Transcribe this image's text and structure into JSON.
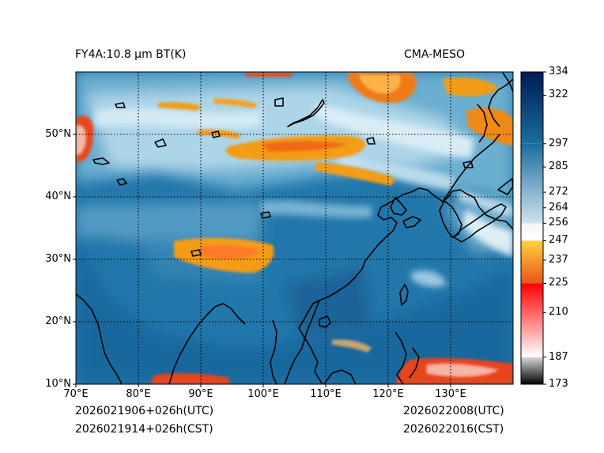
{
  "header": {
    "title_left": "FY4A:10.8 µm BT(K)",
    "title_right": "CMA-MESO"
  },
  "footer": {
    "init_utc": "2026021906+026h(UTC)",
    "init_cst": "2026021914+026h(CST)",
    "valid_utc": "2026022008(UTC)",
    "valid_cst": "2026022016(CST)"
  },
  "map": {
    "lon_range": [
      70,
      140
    ],
    "lat_range": [
      10,
      60
    ],
    "lon_ticks": [
      {
        "value": 70,
        "label": "70°E"
      },
      {
        "value": 80,
        "label": "80°E"
      },
      {
        "value": 90,
        "label": "90°E"
      },
      {
        "value": 100,
        "label": "100°E"
      },
      {
        "value": 110,
        "label": "110°E"
      },
      {
        "value": 120,
        "label": "120°E"
      },
      {
        "value": 130,
        "label": "130°E"
      }
    ],
    "lat_ticks": [
      {
        "value": 10,
        "label": "10°N"
      },
      {
        "value": 20,
        "label": "20°N"
      },
      {
        "value": 30,
        "label": "30°N"
      },
      {
        "value": 40,
        "label": "40°N"
      },
      {
        "value": 50,
        "label": "50°N"
      }
    ],
    "colors": {
      "ocean": "#1d6d9f",
      "land": "#2a7fae",
      "cloud_mid": "#8ec3dc",
      "cloud_high": "#f39c12",
      "cloud_very_high": "#e53b1a",
      "coastline": "#000000",
      "grid": "#000000"
    }
  },
  "colorbar": {
    "min": 173,
    "max": 334,
    "tick_values": [
      334,
      322,
      297,
      285,
      272,
      264,
      256,
      247,
      237,
      225,
      210,
      187,
      173
    ],
    "segments": [
      {
        "from": 173,
        "to": 187,
        "color_top": "#d8d8d8",
        "color_bottom": "#000000"
      },
      {
        "from": 187,
        "to": 225,
        "color_top": "#ff0000",
        "color_bottom": "#ffffff"
      },
      {
        "from": 225,
        "to": 247,
        "color_top": "#ffd23b",
        "color_bottom": "#e8541a"
      },
      {
        "from": 247,
        "to": 256,
        "color_top": "#f2f6f8",
        "color_bottom": "#ffffff"
      },
      {
        "from": 256,
        "to": 297,
        "color_top": "#1a6e9e",
        "color_bottom": "#cfe3ee"
      },
      {
        "from": 297,
        "to": 334,
        "color_top": "#001b54",
        "color_bottom": "#1a6e9e"
      }
    ]
  }
}
